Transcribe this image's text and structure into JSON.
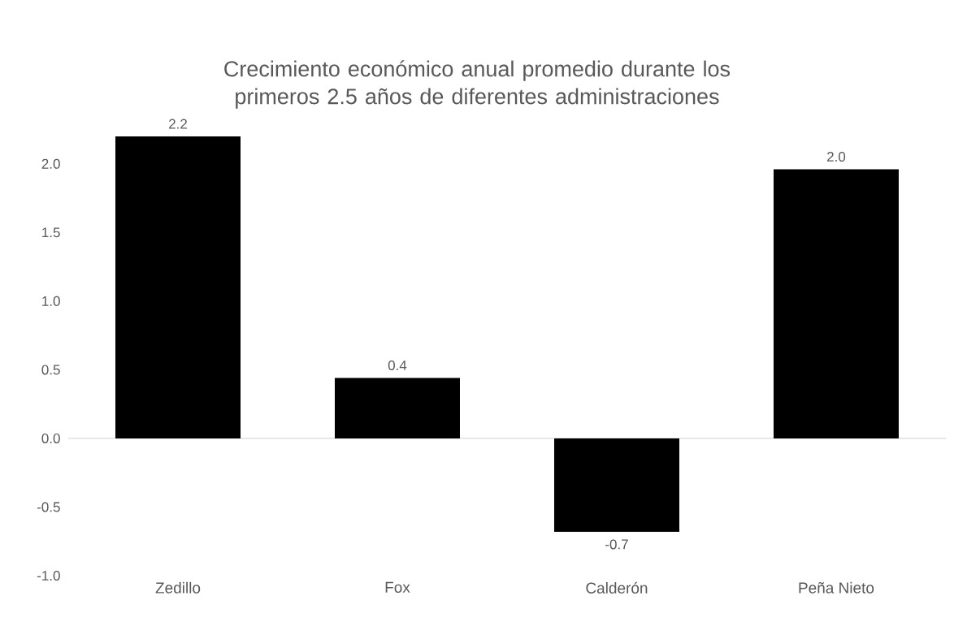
{
  "chart_data": {
    "type": "bar",
    "title": "Crecimiento económico anual promedio durante los primeros 2.5 años de diferentes administraciones",
    "categories": [
      "Zedillo",
      "Fox",
      "Calderón",
      "Peña Nieto"
    ],
    "values": [
      2.2,
      0.44,
      -0.68,
      1.96
    ],
    "value_labels": [
      "2.2",
      "0.4",
      "-0.7",
      "2.0"
    ],
    "color": "#000000",
    "ylim": [
      -1.0,
      2.2
    ],
    "yticks": [
      {
        "value": -1.0,
        "label": "-1.0"
      },
      {
        "value": -0.5,
        "label": "-0.5"
      },
      {
        "value": 0.0,
        "label": "0.0"
      },
      {
        "value": 0.5,
        "label": "0.5"
      },
      {
        "value": 1.0,
        "label": "1.0"
      },
      {
        "value": 1.5,
        "label": "1.5"
      },
      {
        "value": 2.0,
        "label": "2.0"
      }
    ],
    "ref_lines": [
      {
        "axis": "y",
        "value": 0.0,
        "color": "#d9d9d9"
      }
    ]
  }
}
